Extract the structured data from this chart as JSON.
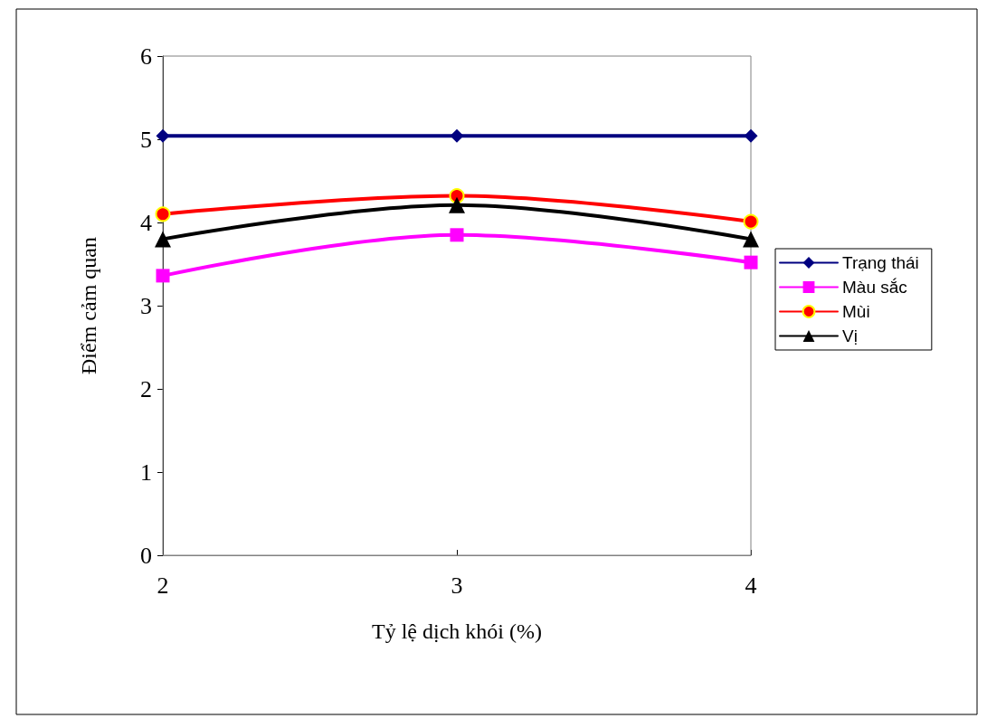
{
  "chart_data": {
    "type": "line",
    "xlabel": "Tỷ lệ dịch khói (%)",
    "ylabel": "Điểm cảm quan",
    "x": [
      2,
      3,
      4
    ],
    "xlim": [
      2,
      4
    ],
    "xticks": [
      2,
      3,
      4
    ],
    "ylim": [
      0,
      6
    ],
    "yticks": [
      0,
      1,
      2,
      3,
      4,
      5,
      6
    ],
    "grid": false,
    "legend": "right",
    "line_style": "solid",
    "series": [
      {
        "name": "Trạng thái",
        "color": "#000080",
        "marker": "diamond",
        "values": [
          5.04,
          5.04,
          5.04
        ]
      },
      {
        "name": "Màu sắc",
        "color": "#ff00ff",
        "marker": "square",
        "values": [
          3.36,
          3.85,
          3.52
        ]
      },
      {
        "name": "Mùi",
        "color": "#ff0000",
        "marker": "circle",
        "values": [
          4.1,
          4.32,
          4.01
        ]
      },
      {
        "name": "Vị",
        "color": "#000000",
        "marker": "triangle",
        "values": [
          3.8,
          4.21,
          3.8
        ]
      }
    ]
  }
}
